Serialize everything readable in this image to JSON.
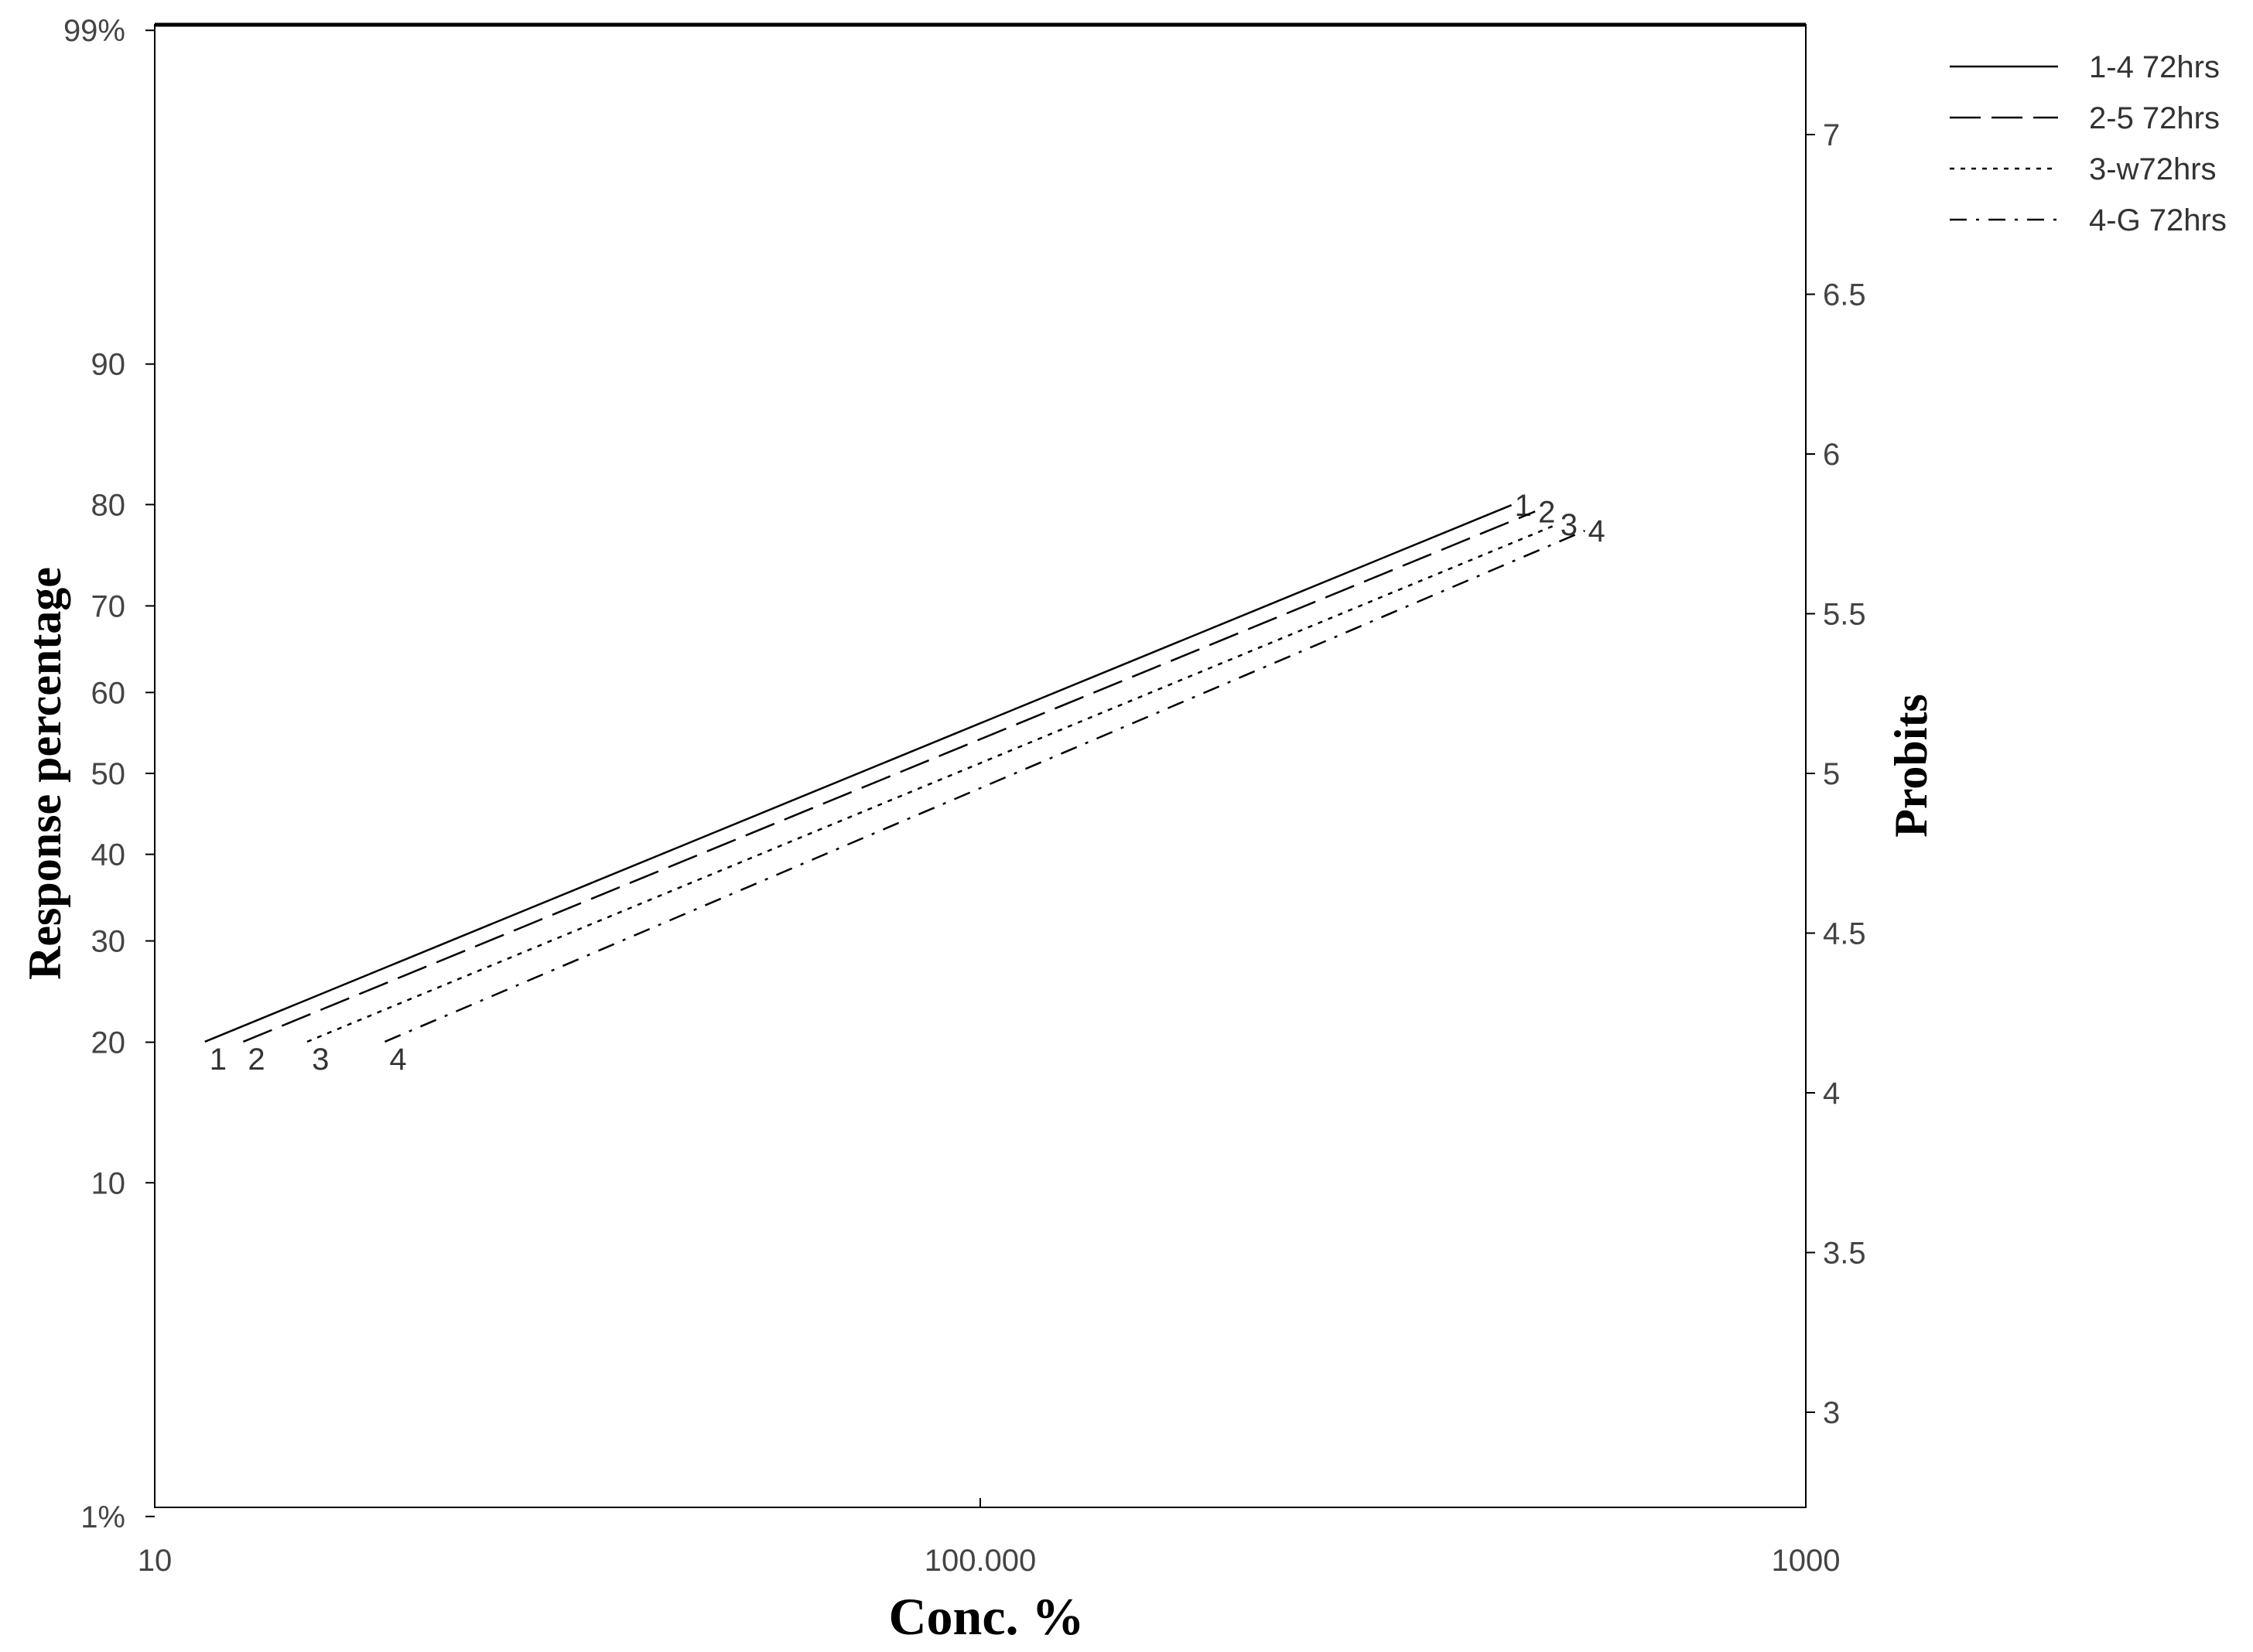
{
  "chart_data": {
    "type": "line",
    "x_scale": "log",
    "y_scale": "probit",
    "xlabel": "Conc. %",
    "ylabel": "Response percentage",
    "ylabel_right": "Probits",
    "xlim": [
      10,
      1000
    ],
    "x_ticks": [
      {
        "value": 10,
        "label": "10"
      },
      {
        "value": 100,
        "label": "100.000"
      },
      {
        "value": 1000,
        "label": "1000"
      }
    ],
    "y_ticks": [
      {
        "value": 1,
        "label": "1%"
      },
      {
        "value": 10,
        "label": "10"
      },
      {
        "value": 20,
        "label": "20"
      },
      {
        "value": 30,
        "label": "30"
      },
      {
        "value": 40,
        "label": "40"
      },
      {
        "value": 50,
        "label": "50"
      },
      {
        "value": 60,
        "label": "60"
      },
      {
        "value": 70,
        "label": "70"
      },
      {
        "value": 80,
        "label": "80"
      },
      {
        "value": 90,
        "label": "90"
      },
      {
        "value": 99,
        "label": "99%"
      }
    ],
    "probit_ticks": [
      {
        "value": 3,
        "label": "3"
      },
      {
        "value": 3.5,
        "label": "3.5"
      },
      {
        "value": 4,
        "label": "4"
      },
      {
        "value": 4.5,
        "label": "4.5"
      },
      {
        "value": 5,
        "label": "5"
      },
      {
        "value": 5.5,
        "label": "5.5"
      },
      {
        "value": 6,
        "label": "6"
      },
      {
        "value": 6.5,
        "label": "6.5"
      },
      {
        "value": 7,
        "label": "7"
      }
    ],
    "legend_position": "top-right",
    "series": [
      {
        "name": "1-4 72hrs",
        "marker": "1",
        "style": "solid",
        "x": [
          11.5,
          440
        ],
        "probit": [
          4.16,
          5.84
        ]
      },
      {
        "name": "2-5 72hrs",
        "marker": "2",
        "style": "dashed",
        "x": [
          12.8,
          470
        ],
        "probit": [
          4.16,
          5.82
        ]
      },
      {
        "name": "3-w72hrs",
        "marker": "3",
        "style": "dotted",
        "x": [
          15.3,
          500
        ],
        "probit": [
          4.16,
          5.78
        ]
      },
      {
        "name": "4-G 72hrs",
        "marker": "4",
        "style": "dashdot",
        "x": [
          19.0,
          540
        ],
        "probit": [
          4.16,
          5.76
        ]
      }
    ]
  }
}
